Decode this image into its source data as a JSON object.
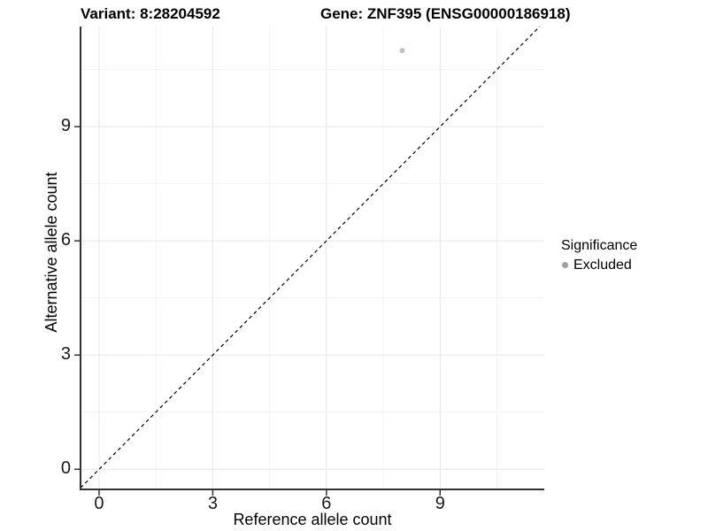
{
  "chart_data": {
    "type": "scatter",
    "titles": {
      "variant": "Variant: 8:28204592",
      "gene": "Gene: ZNF395 (ENSG00000186918)"
    },
    "xlabel": "Reference allele count",
    "ylabel": "Alternative allele count",
    "xlim": [
      -0.49,
      11.75
    ],
    "ylim": [
      -0.53,
      11.63
    ],
    "x_ticks": [
      0,
      3,
      6,
      9
    ],
    "y_ticks": [
      0,
      3,
      6,
      9
    ],
    "x_minor_ticks": [
      1.5,
      4.5,
      7.5,
      10.5
    ],
    "y_minor_ticks": [
      1.5,
      4.5,
      7.5,
      10.5
    ],
    "grid": "major+minor",
    "series": [
      {
        "name": "Excluded",
        "color": "#c2c2c2",
        "points": [
          {
            "x": 8,
            "y": 11
          }
        ]
      }
    ],
    "reference_line": {
      "kind": "y=x",
      "style": "dashed",
      "color": "#000000"
    },
    "legend": {
      "title": "Significance",
      "position": "right",
      "items": [
        {
          "label": "Excluded",
          "color": "#a1a1a1"
        }
      ]
    },
    "colors": {
      "background": "#ffffff",
      "grid_major": "#e6e6e6",
      "grid_minor": "#f2f2f2",
      "axis": "#333333",
      "tick_text": "#1a1a1a"
    }
  }
}
